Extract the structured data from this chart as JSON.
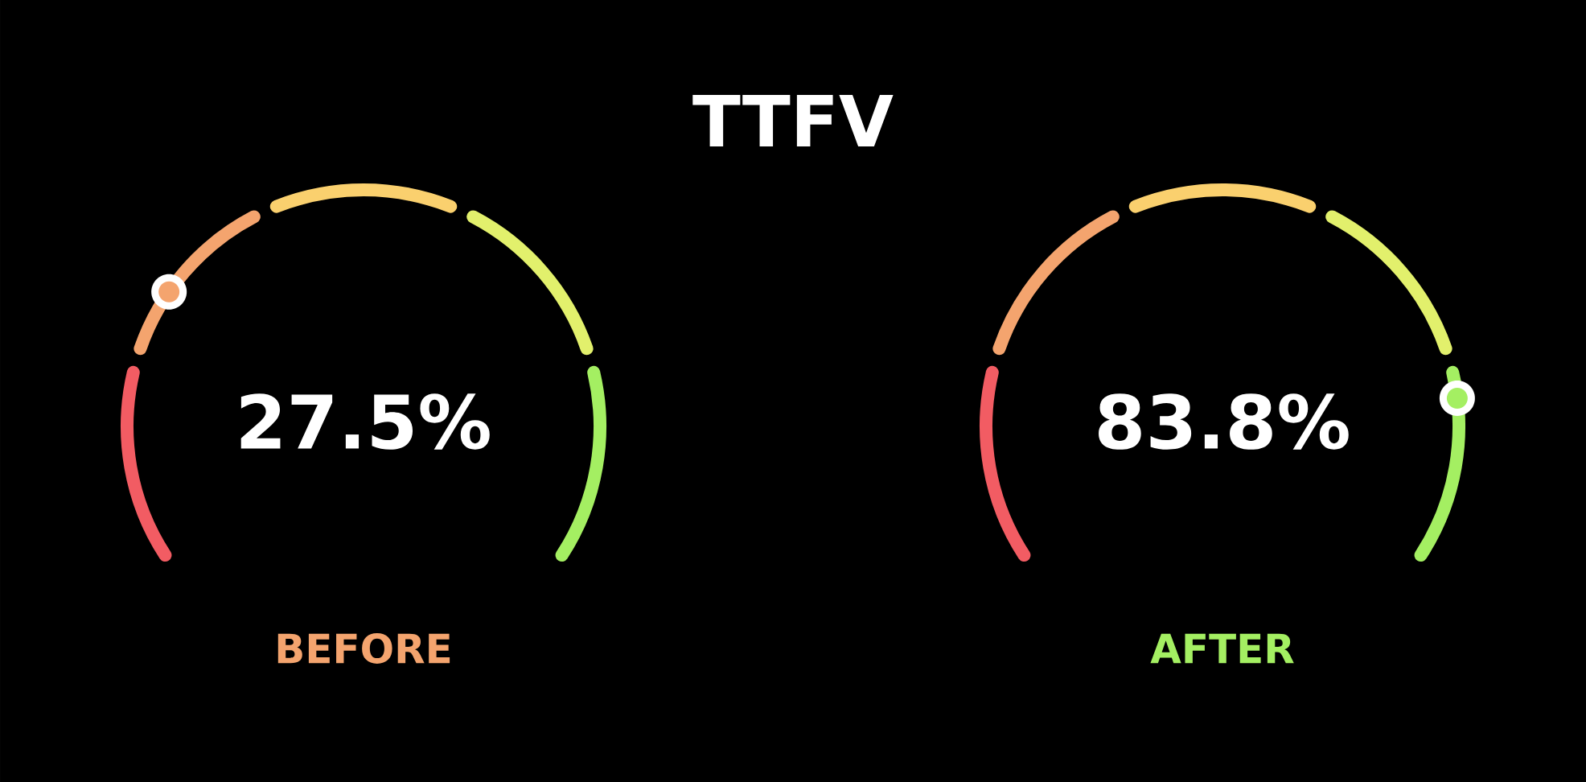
{
  "chart_data": [
    {
      "type": "other",
      "title": "TTFV"
    },
    {
      "type": "other",
      "values": [
        27.5
      ],
      "value_labels": [
        "27.5%"
      ],
      "xlabel": "BEFORE",
      "color": "#f4a46e"
    },
    {
      "type": "other",
      "values": [
        83.8
      ],
      "value_labels": [
        "83.8%"
      ],
      "xlabel": "AFTER",
      "color": "#a4ef62"
    }
  ]
}
